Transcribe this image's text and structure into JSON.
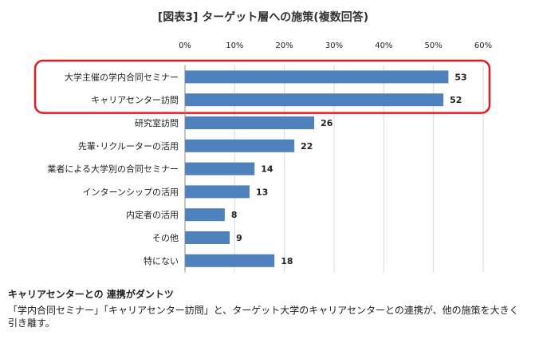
{
  "chart_data": {
    "type": "bar",
    "orientation": "horizontal",
    "title": "[図表3] ターゲット層への施策(複数回答)",
    "categories": [
      "大学主催の学内合同セミナー",
      "キャリアセンター訪問",
      "研究室訪問",
      "先輩･リクルーターの活用",
      "業者による大学別の合同セミナー",
      "インターンシップの活用",
      "内定者の活用",
      "その他",
      "特にない"
    ],
    "values": [
      53,
      52,
      26,
      22,
      14,
      13,
      8,
      9,
      18
    ],
    "xlim": [
      0,
      60
    ],
    "x_ticks": [
      "0%",
      "10%",
      "20%",
      "30%",
      "40%",
      "50%",
      "60%"
    ],
    "tick_axis_position": "top",
    "grid": true,
    "bar_color": "#4f81bd",
    "highlight_color": "#e31b23",
    "highlighted_categories": [
      "大学主催の学内合同セミナー",
      "キャリアセンター訪問"
    ]
  },
  "caption": {
    "heading": "キャリアセンターとの 連携がダントツ",
    "body": "「学内合同セミナー」「キャリアセンター訪問」と、ターゲット大学のキャリアセンターとの連携が、他の施策を大きく引き離す。"
  }
}
